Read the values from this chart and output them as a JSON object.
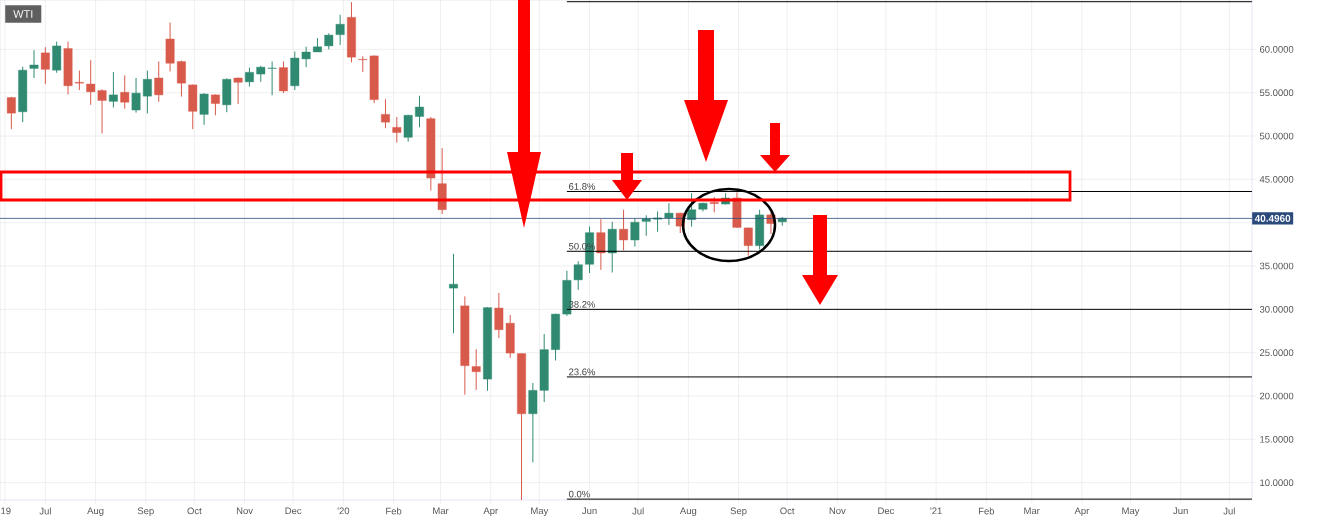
{
  "chart_data": {
    "type": "candlestick",
    "title": "WTI",
    "x": [
      "2019-06-10",
      "2019-06-17",
      "2019-06-24",
      "2019-07-01",
      "2019-07-08",
      "2019-07-15",
      "2019-07-22",
      "2019-07-29",
      "2019-08-05",
      "2019-08-12",
      "2019-08-19",
      "2019-08-26",
      "2019-09-02",
      "2019-09-09",
      "2019-09-16",
      "2019-09-23",
      "2019-09-30",
      "2019-10-07",
      "2019-10-14",
      "2019-10-21",
      "2019-10-28",
      "2019-11-04",
      "2019-11-11",
      "2019-11-18",
      "2019-11-25",
      "2019-12-02",
      "2019-12-09",
      "2019-12-16",
      "2019-12-23",
      "2019-12-30",
      "2020-01-06",
      "2020-01-13",
      "2020-01-20",
      "2020-01-27",
      "2020-02-03",
      "2020-02-10",
      "2020-02-17",
      "2020-02-24",
      "2020-03-02",
      "2020-03-09",
      "2020-03-16",
      "2020-03-23",
      "2020-03-30",
      "2020-04-06",
      "2020-04-13",
      "2020-04-20",
      "2020-04-27",
      "2020-05-04",
      "2020-05-11",
      "2020-05-18",
      "2020-05-25",
      "2020-06-01",
      "2020-06-08",
      "2020-06-15",
      "2020-06-22",
      "2020-06-29",
      "2020-07-06",
      "2020-07-13",
      "2020-07-20",
      "2020-07-27",
      "2020-08-03",
      "2020-08-10",
      "2020-08-17",
      "2020-08-24",
      "2020-08-31",
      "2020-09-07",
      "2020-09-14",
      "2020-09-21",
      "2020-09-28"
    ],
    "ohlc": [
      [
        54.44,
        54.52,
        50.8,
        52.64
      ],
      [
        52.8,
        58.0,
        51.6,
        57.6
      ],
      [
        57.8,
        59.9,
        56.7,
        58.2
      ],
      [
        59.6,
        60.25,
        56.0,
        57.7
      ],
      [
        57.6,
        60.9,
        57.3,
        60.4
      ],
      [
        60.1,
        60.9,
        54.8,
        55.8
      ],
      [
        56.2,
        57.55,
        55.3,
        56.1
      ],
      [
        56.0,
        58.75,
        53.6,
        55.1
      ],
      [
        55.25,
        55.4,
        50.3,
        54.1
      ],
      [
        54.0,
        57.4,
        53.3,
        54.75
      ],
      [
        55.05,
        57.0,
        53.15,
        53.9
      ],
      [
        53.0,
        56.7,
        52.7,
        54.95
      ],
      [
        54.6,
        57.55,
        52.6,
        56.55
      ],
      [
        56.7,
        58.6,
        53.95,
        54.75
      ],
      [
        61.2,
        63.1,
        57.45,
        58.4
      ],
      [
        58.6,
        58.7,
        54.55,
        56.1
      ],
      [
        55.9,
        55.95,
        50.8,
        52.85
      ],
      [
        52.5,
        54.95,
        51.3,
        54.85
      ],
      [
        54.75,
        54.8,
        52.4,
        53.75
      ],
      [
        53.6,
        56.65,
        52.75,
        56.55
      ],
      [
        56.7,
        56.75,
        53.7,
        56.2
      ],
      [
        56.25,
        57.9,
        55.7,
        57.35
      ],
      [
        57.15,
        58.1,
        56.25,
        57.95
      ],
      [
        57.8,
        58.6,
        54.7,
        57.85
      ],
      [
        57.9,
        58.6,
        54.95,
        55.2
      ],
      [
        55.8,
        59.75,
        55.3,
        59.0
      ],
      [
        58.9,
        60.3,
        57.95,
        59.7
      ],
      [
        59.7,
        61.3,
        59.7,
        60.3
      ],
      [
        60.4,
        61.85,
        60.0,
        61.65
      ],
      [
        61.7,
        64.0,
        60.5,
        62.9
      ],
      [
        63.7,
        65.45,
        58.5,
        59.1
      ],
      [
        58.85,
        59.2,
        57.4,
        58.8
      ],
      [
        59.25,
        59.3,
        53.8,
        54.2
      ],
      [
        52.5,
        54.25,
        50.9,
        51.6
      ],
      [
        51.0,
        52.2,
        49.25,
        50.4
      ],
      [
        49.85,
        52.45,
        49.35,
        52.4
      ],
      [
        52.25,
        54.65,
        51.0,
        53.35
      ],
      [
        52.0,
        52.2,
        43.7,
        45.15
      ],
      [
        44.5,
        48.6,
        41.0,
        41.5
      ],
      [
        32.45,
        36.4,
        27.25,
        32.9
      ],
      [
        30.4,
        31.5,
        20.15,
        23.5
      ],
      [
        23.4,
        25.4,
        20.7,
        22.8
      ],
      [
        21.95,
        30.25,
        20.6,
        30.2
      ],
      [
        30.15,
        31.9,
        26.7,
        27.65
      ],
      [
        28.4,
        29.35,
        24.4,
        24.95
      ],
      [
        24.9,
        24.9,
        8.0,
        17.95
      ],
      [
        17.95,
        21.5,
        12.35,
        20.65
      ],
      [
        20.65,
        27.15,
        19.3,
        25.35
      ],
      [
        25.35,
        29.5,
        24.1,
        29.45
      ],
      [
        29.45,
        34.45,
        29.25,
        33.35
      ],
      [
        33.4,
        35.55,
        32.25,
        35.15
      ],
      [
        35.2,
        39.55,
        34.2,
        38.85
      ],
      [
        38.85,
        40.4,
        34.55,
        36.5
      ],
      [
        36.5,
        40.1,
        34.25,
        39.25
      ],
      [
        39.25,
        41.5,
        36.8,
        38.0
      ],
      [
        38.0,
        40.5,
        37.25,
        40.05
      ],
      [
        40.15,
        40.85,
        38.5,
        40.45
      ],
      [
        40.4,
        41.3,
        38.95,
        40.55
      ],
      [
        40.55,
        42.25,
        39.75,
        41.1
      ],
      [
        41.1,
        41.15,
        38.8,
        39.6
      ],
      [
        40.35,
        43.4,
        39.55,
        41.5
      ],
      [
        41.55,
        42.3,
        41.3,
        42.25
      ],
      [
        42.35,
        42.95,
        41.2,
        42.2
      ],
      [
        42.15,
        43.4,
        42.1,
        42.85
      ],
      [
        42.85,
        43.5,
        39.4,
        39.45
      ],
      [
        39.4,
        39.45,
        36.2,
        37.35
      ],
      [
        37.35,
        41.5,
        36.9,
        40.9
      ],
      [
        40.9,
        41.2,
        38.7,
        39.9
      ],
      [
        40.1,
        40.65,
        39.65,
        40.5
      ]
    ],
    "colors": [
      "#d85a4b",
      "#308a72",
      "#308a72",
      "#d85a4b",
      "#308a72",
      "#d85a4b",
      "#d85a4b",
      "#d85a4b",
      "#d85a4b",
      "#308a72",
      "#d85a4b",
      "#308a72",
      "#308a72",
      "#d85a4b",
      "#d85a4b",
      "#d85a4b",
      "#d85a4b",
      "#308a72",
      "#d85a4b",
      "#308a72",
      "#d85a4b",
      "#308a72",
      "#308a72",
      "#308a72",
      "#d85a4b",
      "#308a72",
      "#308a72",
      "#308a72",
      "#308a72",
      "#308a72",
      "#d85a4b",
      "#d85a4b",
      "#d85a4b",
      "#d85a4b",
      "#d85a4b",
      "#308a72",
      "#308a72",
      "#d85a4b",
      "#d85a4b",
      "#308a72",
      "#d85a4b",
      "#d85a4b",
      "#308a72",
      "#d85a4b",
      "#d85a4b",
      "#d85a4b",
      "#308a72",
      "#308a72",
      "#308a72",
      "#308a72",
      "#308a72",
      "#308a72",
      "#d85a4b",
      "#308a72",
      "#d85a4b",
      "#308a72",
      "#308a72",
      "#308a72",
      "#308a72",
      "#d85a4b",
      "#308a72",
      "#308a72",
      "#d85a4b",
      "#308a72",
      "#d85a4b",
      "#d85a4b",
      "#308a72",
      "#d85a4b",
      "#308a72"
    ],
    "series": [
      {
        "type": "line",
        "color": "#000000",
        "x": [
          "2020-05-18",
          "2021-07-15"
        ],
        "values": [
          65.5,
          65.5
        ]
      },
      {
        "type": "line",
        "name": "61.8%",
        "color": "#000000",
        "x": [
          "2020-05-18",
          "2021-07-15"
        ],
        "values": [
          43.6,
          43.6
        ]
      },
      {
        "type": "line",
        "name": "50.0%",
        "color": "#000000",
        "x": [
          "2020-05-18",
          "2021-07-15"
        ],
        "values": [
          36.7,
          36.7
        ]
      },
      {
        "type": "line",
        "name": "38.2%",
        "color": "#000000",
        "x": [
          "2020-05-18",
          "2021-07-15"
        ],
        "values": [
          30.0,
          30.0
        ]
      },
      {
        "type": "line",
        "name": "23.6%",
        "color": "#000000",
        "x": [
          "2020-05-18",
          "2021-07-15"
        ],
        "values": [
          22.2,
          22.2
        ]
      },
      {
        "type": "line",
        "name": "0.0%",
        "color": "#000000",
        "x": [
          "2020-05-18",
          "2021-07-15"
        ],
        "values": [
          8.1,
          8.1
        ]
      }
    ],
    "ref_lines": [
      {
        "axis": "y",
        "value": 40.496,
        "label": "40.4960",
        "color": "#2a4a7c"
      }
    ],
    "xlim": [
      "2019-06-03",
      "2021-07-15"
    ],
    "xticks": [
      {
        "value": "2019-06-06",
        "label": "'19"
      },
      {
        "value": "2019-07-01",
        "label": "Jul"
      },
      {
        "value": "2019-08-01",
        "label": "Aug"
      },
      {
        "value": "2019-09-01",
        "label": "Sep"
      },
      {
        "value": "2019-10-01",
        "label": "Oct"
      },
      {
        "value": "2019-11-01",
        "label": "Nov"
      },
      {
        "value": "2019-12-01",
        "label": "Dec"
      },
      {
        "value": "2020-01-01",
        "label": "'20"
      },
      {
        "value": "2020-02-01",
        "label": "Feb"
      },
      {
        "value": "2020-03-01",
        "label": "Mar"
      },
      {
        "value": "2020-04-01",
        "label": "Apr"
      },
      {
        "value": "2020-05-01",
        "label": "May"
      },
      {
        "value": "2020-06-01",
        "label": "Jun"
      },
      {
        "value": "2020-07-01",
        "label": "Jul"
      },
      {
        "value": "2020-08-01",
        "label": "Aug"
      },
      {
        "value": "2020-09-01",
        "label": "Sep"
      },
      {
        "value": "2020-10-01",
        "label": "Oct"
      },
      {
        "value": "2020-11-01",
        "label": "Nov"
      },
      {
        "value": "2020-12-01",
        "label": "Dec"
      },
      {
        "value": "2021-01-01",
        "label": "'21"
      },
      {
        "value": "2021-02-01",
        "label": "Feb"
      },
      {
        "value": "2021-03-01",
        "label": "Mar"
      },
      {
        "value": "2021-04-01",
        "label": "Apr"
      },
      {
        "value": "2021-05-01",
        "label": "May"
      },
      {
        "value": "2021-06-01",
        "label": "Jun"
      },
      {
        "value": "2021-07-01",
        "label": "Jul"
      }
    ],
    "ylim": [
      8.0,
      65.7
    ],
    "yticks": [
      {
        "value": 10,
        "label": "10.0000"
      },
      {
        "value": 15,
        "label": "15.0000"
      },
      {
        "value": 20,
        "label": "20.0000"
      },
      {
        "value": 25,
        "label": "25.0000"
      },
      {
        "value": 30,
        "label": "30.0000"
      },
      {
        "value": 35,
        "label": "35.0000"
      },
      {
        "value": 40,
        "label": null
      },
      {
        "value": 45,
        "label": "45.0000"
      },
      {
        "value": 50,
        "label": "50.0000"
      },
      {
        "value": 55,
        "label": "55.0000"
      },
      {
        "value": 60,
        "label": "60.0000"
      }
    ],
    "grid": true
  }
}
